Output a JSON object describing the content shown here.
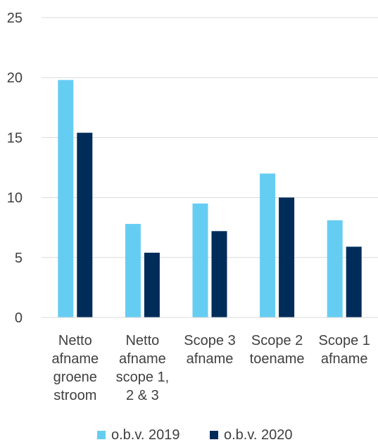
{
  "chart_data": {
    "type": "bar",
    "title": "",
    "xlabel": "",
    "ylabel": "",
    "ylim": [
      0,
      25
    ],
    "yticks": [
      0,
      5,
      10,
      15,
      20,
      25
    ],
    "grid": true,
    "legend_position": "bottom",
    "categories": [
      [
        "Netto",
        "afname",
        "groene",
        "stroom"
      ],
      [
        "Netto",
        "afname",
        "scope 1,",
        "2 & 3"
      ],
      [
        "Scope 3",
        "afname"
      ],
      [
        "Scope 2",
        "toename"
      ],
      [
        "Scope 1",
        "afname"
      ]
    ],
    "series": [
      {
        "name": "o.b.v. 2019",
        "color": "#66CDF2",
        "values": [
          19.8,
          7.8,
          9.5,
          12.0,
          8.1
        ]
      },
      {
        "name": "o.b.v. 2020",
        "color": "#002C5A",
        "values": [
          15.4,
          5.4,
          7.2,
          10.0,
          5.9
        ]
      }
    ]
  }
}
